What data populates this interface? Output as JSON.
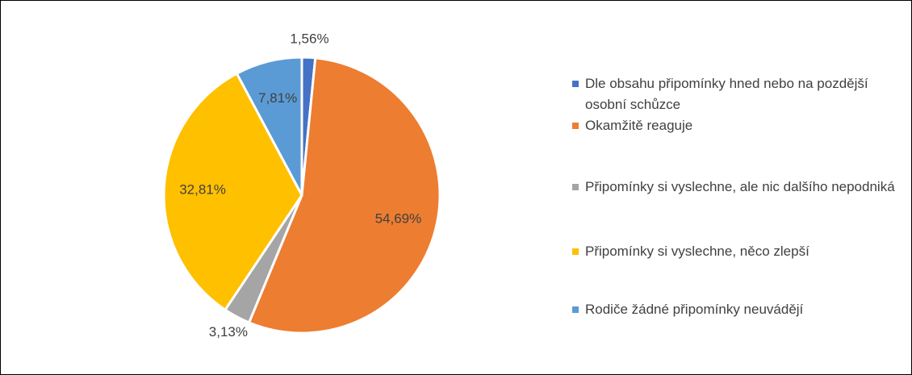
{
  "chart_data": {
    "type": "pie",
    "categories": [
      "Dle obsahu připomínky hned nebo na pozdější osobní schůzce",
      "Okamžitě reaguje",
      "Připomínky si vyslechne, ale nic dalšího nepodniká",
      "Připomínky si vyslechne, něco zlepší",
      "Rodiče žádné připomínky neuvádějí"
    ],
    "values": [
      1.56,
      54.69,
      3.13,
      32.81,
      7.81
    ],
    "value_labels": [
      "1,56%",
      "54,69%",
      "3,13%",
      "32,81%",
      "7,81%"
    ],
    "colors": [
      "#4472c4",
      "#ed7d31",
      "#a5a5a5",
      "#ffc000",
      "#5b9bd5"
    ],
    "legend": "right"
  }
}
